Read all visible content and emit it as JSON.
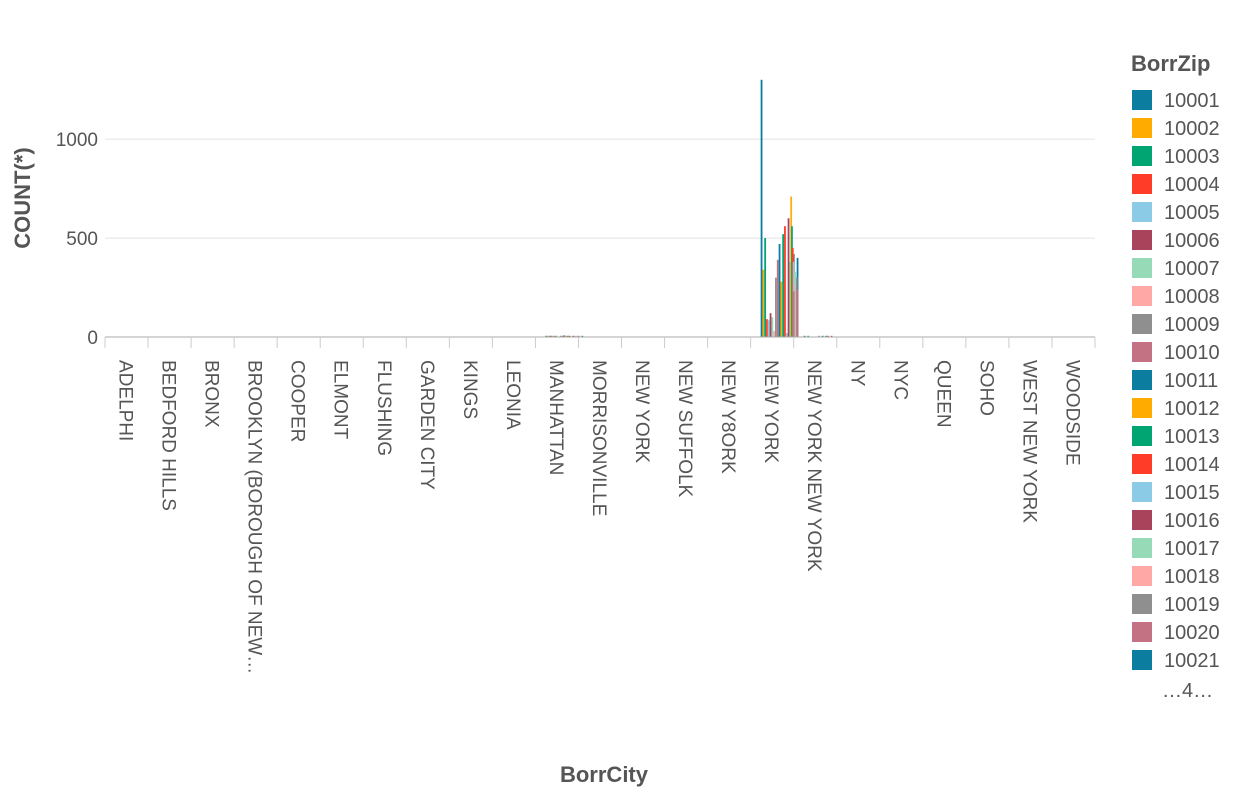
{
  "chart_data": {
    "type": "bar",
    "title": "",
    "xlabel": "BorrCity",
    "ylabel": "COUNT(*)",
    "ylim": [
      0,
      1400
    ],
    "yticks": [
      0,
      500,
      1000
    ],
    "grid": true,
    "legend_position": "right",
    "legend_title": "BorrZip",
    "legend_overflow": "…4…",
    "categories": [
      "ADELPHI",
      "BEDFORD HILLS",
      "BRONX",
      "BROOKLYN (BOROUGH OF NEW…",
      "COOPER",
      "ELMONT",
      "FLUSHING",
      "GARDEN CITY",
      "KINGS",
      "LEONIA",
      "MANHATTAN",
      "MORRISONVILLE",
      "NEW  YORK",
      "NEW SUFFOLK",
      "NEW Y8ORK",
      "NEW YORK",
      "NEW YORK NEW YORK",
      "NY",
      "NYC",
      "QUEEN",
      "SOHO",
      "WEST NEW YORK",
      "WOODSIDE"
    ],
    "series_colors": [
      "#0b7ea0",
      "#ffab00",
      "#00a572",
      "#ff3c28",
      "#8ccbe6",
      "#a9435b",
      "#97dab8",
      "#ffa8a5",
      "#8f8f8f",
      "#c27283"
    ],
    "series": [
      {
        "name": "10001",
        "values": [
          0,
          0,
          0,
          0,
          0,
          0,
          0,
          0,
          0,
          0,
          6,
          0,
          0,
          0,
          0,
          1300,
          1,
          0,
          0,
          0,
          0,
          0,
          0
        ]
      },
      {
        "name": "10002",
        "values": [
          0,
          0,
          0,
          0,
          0,
          0,
          0,
          0,
          0,
          0,
          2,
          0,
          0,
          0,
          0,
          340,
          0,
          0,
          0,
          0,
          0,
          0,
          0
        ]
      },
      {
        "name": "10003",
        "values": [
          0,
          0,
          0,
          0,
          0,
          0,
          0,
          0,
          0,
          0,
          5,
          0,
          0,
          0,
          0,
          500,
          1,
          0,
          0,
          0,
          0,
          0,
          0
        ]
      },
      {
        "name": "10004",
        "values": [
          0,
          0,
          0,
          0,
          0,
          0,
          0,
          0,
          0,
          0,
          1,
          0,
          0,
          0,
          0,
          90,
          0,
          0,
          0,
          0,
          0,
          0,
          0
        ]
      },
      {
        "name": "10005",
        "values": [
          0,
          0,
          0,
          0,
          0,
          0,
          0,
          0,
          0,
          0,
          1,
          0,
          0,
          0,
          0,
          85,
          0,
          0,
          0,
          0,
          0,
          0,
          0
        ]
      },
      {
        "name": "10006",
        "values": [
          0,
          0,
          0,
          0,
          0,
          0,
          0,
          0,
          0,
          0,
          1,
          0,
          0,
          0,
          0,
          120,
          0,
          0,
          0,
          0,
          0,
          0,
          0
        ]
      },
      {
        "name": "10007",
        "values": [
          0,
          0,
          0,
          0,
          0,
          0,
          0,
          0,
          0,
          0,
          1,
          0,
          0,
          0,
          0,
          100,
          0,
          0,
          0,
          0,
          0,
          0,
          0
        ]
      },
      {
        "name": "10008",
        "values": [
          0,
          0,
          0,
          0,
          0,
          0,
          0,
          0,
          0,
          0,
          0,
          0,
          0,
          0,
          0,
          30,
          0,
          0,
          0,
          0,
          0,
          0,
          0
        ]
      },
      {
        "name": "10009",
        "values": [
          0,
          0,
          0,
          0,
          0,
          0,
          0,
          0,
          0,
          0,
          4,
          0,
          0,
          0,
          0,
          300,
          1,
          0,
          0,
          0,
          0,
          0,
          0
        ]
      },
      {
        "name": "10010",
        "values": [
          0,
          0,
          0,
          0,
          0,
          0,
          0,
          0,
          0,
          0,
          3,
          0,
          0,
          0,
          0,
          390,
          0,
          0,
          0,
          0,
          0,
          0,
          0
        ]
      },
      {
        "name": "10011",
        "values": [
          0,
          0,
          0,
          0,
          0,
          0,
          0,
          0,
          0,
          0,
          8,
          0,
          0,
          0,
          0,
          470,
          1,
          0,
          0,
          0,
          0,
          0,
          0
        ]
      },
      {
        "name": "10012",
        "values": [
          0,
          0,
          0,
          0,
          0,
          0,
          0,
          0,
          0,
          0,
          2,
          0,
          0,
          0,
          0,
          280,
          0,
          0,
          0,
          0,
          0,
          0,
          0
        ]
      },
      {
        "name": "10013",
        "values": [
          0,
          0,
          0,
          0,
          0,
          0,
          0,
          0,
          0,
          0,
          4,
          0,
          0,
          0,
          0,
          520,
          1,
          0,
          0,
          0,
          0,
          0,
          0
        ]
      },
      {
        "name": "10014",
        "values": [
          0,
          0,
          0,
          0,
          0,
          0,
          0,
          0,
          0,
          0,
          5,
          0,
          0,
          0,
          0,
          560,
          1,
          0,
          0,
          0,
          0,
          0,
          0
        ]
      },
      {
        "name": "10015",
        "values": [
          0,
          0,
          0,
          0,
          0,
          0,
          0,
          0,
          0,
          0,
          0,
          0,
          0,
          0,
          0,
          20,
          0,
          0,
          0,
          0,
          0,
          0,
          0
        ]
      },
      {
        "name": "10016",
        "values": [
          0,
          0,
          0,
          0,
          0,
          0,
          0,
          0,
          0,
          0,
          6,
          0,
          0,
          0,
          0,
          600,
          1,
          0,
          0,
          0,
          0,
          0,
          0
        ]
      },
      {
        "name": "10017",
        "values": [
          0,
          0,
          0,
          0,
          0,
          0,
          0,
          0,
          0,
          0,
          3,
          0,
          0,
          0,
          0,
          380,
          0,
          0,
          0,
          0,
          0,
          0,
          0
        ]
      },
      {
        "name": "10018",
        "values": [
          0,
          0,
          0,
          0,
          0,
          0,
          0,
          0,
          0,
          0,
          2,
          0,
          0,
          0,
          0,
          250,
          0,
          0,
          0,
          0,
          0,
          0,
          0
        ]
      },
      {
        "name": "10019",
        "values": [
          0,
          0,
          0,
          0,
          0,
          0,
          0,
          0,
          0,
          0,
          4,
          0,
          0,
          0,
          0,
          420,
          0,
          0,
          0,
          0,
          0,
          0,
          0
        ]
      },
      {
        "name": "10020",
        "values": [
          0,
          0,
          0,
          0,
          0,
          0,
          0,
          0,
          0,
          0,
          0,
          0,
          0,
          0,
          0,
          10,
          0,
          0,
          0,
          0,
          0,
          0,
          0
        ]
      },
      {
        "name": "10021",
        "values": [
          0,
          0,
          0,
          0,
          0,
          0,
          0,
          0,
          0,
          0,
          3,
          0,
          0,
          0,
          0,
          400,
          0,
          0,
          0,
          0,
          0,
          0,
          0
        ]
      }
    ],
    "extra_bars_new_york": [
      710,
      560,
      450,
      380,
      230,
      330,
      270,
      300,
      240
    ]
  }
}
